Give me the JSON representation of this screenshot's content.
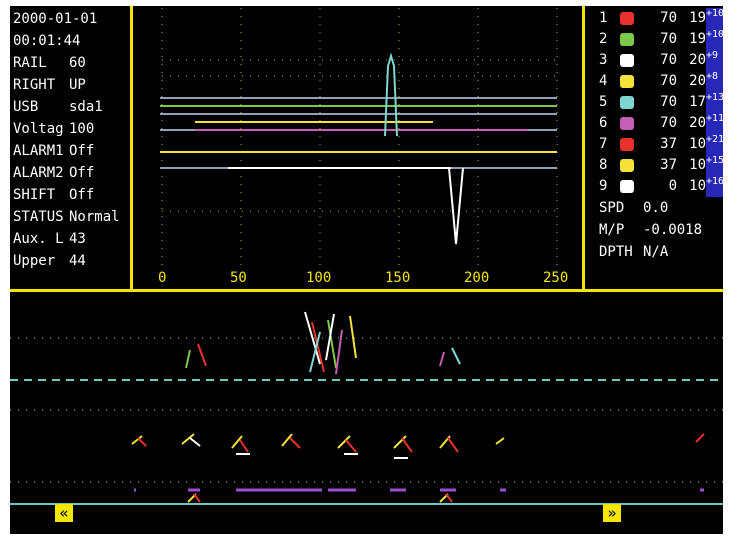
{
  "status": {
    "date": "2000-01-01",
    "time": "00:01:44",
    "rows": [
      {
        "label": "RAIL",
        "value": "60"
      },
      {
        "label": "RIGHT",
        "value": "UP"
      },
      {
        "label": "USB",
        "value": "sda1"
      },
      {
        "label": "Voltag",
        "value": "100"
      },
      {
        "label": "ALARM1",
        "value": "Off"
      },
      {
        "label": "ALARM2",
        "value": "Off"
      },
      {
        "label": "SHIFT",
        "value": "Off"
      },
      {
        "label": "STATUS",
        "value": "Normal"
      },
      {
        "label": "Aux. L",
        "value": "43"
      },
      {
        "label": "Upper",
        "value": "44"
      }
    ]
  },
  "channels": [
    {
      "num": "1",
      "color": "#e8302c",
      "a": "70",
      "b": "19",
      "exp": "+10"
    },
    {
      "num": "2",
      "color": "#7cc84a",
      "a": "70",
      "b": "19",
      "exp": "+10"
    },
    {
      "num": "3",
      "color": "#ffffff",
      "a": "70",
      "b": "20",
      "exp": "+9"
    },
    {
      "num": "4",
      "color": "#f2e23a",
      "a": "70",
      "b": "20",
      "exp": "+8"
    },
    {
      "num": "5",
      "color": "#7fd6d0",
      "a": "70",
      "b": "17",
      "exp": "+13"
    },
    {
      "num": "6",
      "color": "#c35fb4",
      "a": "70",
      "b": "20",
      "exp": "+11"
    },
    {
      "num": "7",
      "color": "#e8302c",
      "a": "37",
      "b": "10",
      "exp": "+21"
    },
    {
      "num": "8",
      "color": "#f2e23a",
      "a": "37",
      "b": "10",
      "exp": "+15"
    },
    {
      "num": "9",
      "color": "#ffffff",
      "a": "0",
      "b": "10",
      "exp": "+16"
    }
  ],
  "readouts": {
    "spd_label": "SPD",
    "spd_value": "0.0",
    "mp_label": "M/P",
    "mp_value": "-0.0018",
    "dpth_label": "DPTH",
    "dpth_value": "N/A"
  },
  "axis": {
    "ticks": [
      "0",
      "50",
      "100",
      "150",
      "200",
      "250"
    ]
  },
  "nav": {
    "prev_label": "«",
    "next_label": "»"
  }
}
